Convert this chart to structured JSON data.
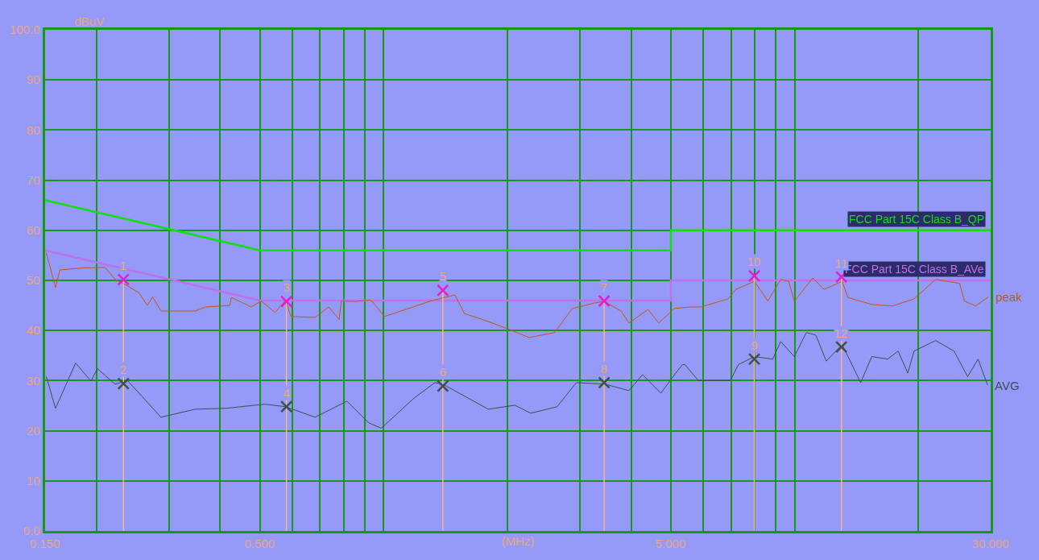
{
  "chart_data": {
    "type": "line",
    "ylabel": "dBuV",
    "xlabel": "(MHz)",
    "log": "x",
    "grid": true,
    "legend": false,
    "xlim": [
      0.15,
      30
    ],
    "ylim": [
      0,
      100
    ],
    "xticks": [
      {
        "value": 0.15,
        "label": "0.150"
      },
      {
        "value": 0.2,
        "label": null
      },
      {
        "value": 0.3,
        "label": null
      },
      {
        "value": 0.4,
        "label": null
      },
      {
        "value": 0.5,
        "label": "0.500"
      },
      {
        "value": 0.6,
        "label": null
      },
      {
        "value": 0.7,
        "label": null
      },
      {
        "value": 0.8,
        "label": null
      },
      {
        "value": 0.9,
        "label": null
      },
      {
        "value": 1,
        "label": null
      },
      {
        "value": 2,
        "label": null
      },
      {
        "value": 3,
        "label": null
      },
      {
        "value": 4,
        "label": null
      },
      {
        "value": 5,
        "label": "5.000"
      },
      {
        "value": 6,
        "label": null
      },
      {
        "value": 7,
        "label": null
      },
      {
        "value": 8,
        "label": null
      },
      {
        "value": 9,
        "label": null
      },
      {
        "value": 10,
        "label": null
      },
      {
        "value": 20,
        "label": null
      },
      {
        "value": 30,
        "label": "30.000"
      }
    ],
    "yticks": [
      {
        "value": 0,
        "label": "0.0"
      },
      10,
      20,
      30,
      40,
      50,
      60,
      70,
      80,
      90,
      {
        "value": 100,
        "label": "100.0"
      }
    ],
    "series": [
      {
        "name": "FCC Part 15C Class B_QP",
        "color": "#10e010",
        "x": [
          0.15,
          0.5,
          5,
          5,
          30
        ],
        "values": [
          66,
          56,
          56,
          60,
          60
        ]
      },
      {
        "name": "FCC Part 15C Class B_AVe",
        "color": "#c070e8",
        "x": [
          0.15,
          0.5,
          5,
          5,
          30
        ],
        "values": [
          56,
          46,
          46,
          50,
          50
        ]
      },
      {
        "name": "peak",
        "color": "#c05a10",
        "x": [
          0.151,
          0.159,
          0.163,
          0.186,
          0.21,
          0.222,
          0.236,
          0.254,
          0.266,
          0.274,
          0.287,
          0.348,
          0.369,
          0.422,
          0.426,
          0.476,
          0.504,
          0.544,
          0.577,
          0.595,
          0.681,
          0.735,
          0.779,
          0.789,
          0.852,
          0.931,
          1.005,
          1.15,
          1.314,
          1.49,
          1.572,
          1.797,
          1.993,
          2.259,
          2.607,
          2.877,
          3.261,
          3.441,
          3.78,
          3.953,
          4.401,
          4.665,
          5.102,
          5.58,
          5.912,
          6.884,
          7.2,
          7.98,
          8.611,
          9.252,
          9.675,
          9.983,
          11.07,
          11.78,
          13.06,
          13.47,
          15.41,
          17.31,
          19.53,
          22.04,
          25.21,
          25.89,
          27.57,
          29.62
        ],
        "values": [
          55.5,
          48.6,
          52.1,
          52.5,
          52.6,
          50.2,
          49.1,
          47.5,
          45.0,
          46.7,
          43.9,
          43.9,
          44.7,
          45.0,
          46.6,
          44.7,
          45.9,
          43.6,
          46.0,
          42.8,
          42.6,
          44.7,
          42.2,
          45.9,
          45.8,
          46.1,
          42.8,
          44.4,
          46.0,
          47.1,
          43.4,
          41.8,
          40.4,
          38.6,
          39.6,
          44.4,
          45.5,
          45.8,
          43.9,
          41.5,
          44.2,
          41.5,
          44.4,
          44.7,
          44.7,
          46.3,
          48.2,
          49.8,
          45.9,
          50.2,
          49.8,
          45.8,
          50.5,
          48.2,
          49.8,
          46.6,
          45.2,
          44.9,
          46.3,
          50.2,
          49.4,
          45.9,
          44.9,
          46.7
        ]
      },
      {
        "name": "AVG",
        "color": "#3c5050",
        "x": [
          0.151,
          0.159,
          0.178,
          0.194,
          0.201,
          0.222,
          0.238,
          0.258,
          0.287,
          0.348,
          0.416,
          0.513,
          0.577,
          0.681,
          0.814,
          0.919,
          0.987,
          1.181,
          1.332,
          1.393,
          1.797,
          2.085,
          2.28,
          2.643,
          2.943,
          3.456,
          3.953,
          4.265,
          4.727,
          5.102,
          5.334,
          5.408,
          5.835,
          6.977,
          7.297,
          7.98,
          8.845,
          9.252,
          9.983,
          10.68,
          11.26,
          11.94,
          13.06,
          14.48,
          15.41,
          16.85,
          17.86,
          18.86,
          19.53,
          22.04,
          24.43,
          26.37,
          27.95,
          29.49
        ],
        "values": [
          30.8,
          24.5,
          33.5,
          29.9,
          32.4,
          29.3,
          30.0,
          26.9,
          22.7,
          24.3,
          24.5,
          25.3,
          24.8,
          22.7,
          25.9,
          21.6,
          20.5,
          26.4,
          29.6,
          29.3,
          24.3,
          25.1,
          23.5,
          24.8,
          29.6,
          29.3,
          28.0,
          31.2,
          27.5,
          31.2,
          33.2,
          33.2,
          30.0,
          30.0,
          33.2,
          34.8,
          34.3,
          37.8,
          34.8,
          39.6,
          39.1,
          33.9,
          37.2,
          29.6,
          34.8,
          34.3,
          35.9,
          31.5,
          35.9,
          38.0,
          35.9,
          30.8,
          34.3,
          29.1
        ]
      },
      {
        "type": "lollipop",
        "marker": "cross",
        "color": "#e020d0",
        "x": [
          0.2327,
          0.58,
          1.393,
          3.44,
          7.98,
          13.0
        ],
        "values": [
          50.2,
          45.8,
          48.0,
          45.9,
          50.9,
          50.7
        ]
      },
      {
        "type": "scatter",
        "marker": "cross",
        "color": "#405050",
        "x": [
          0.2327,
          0.58,
          1.393,
          3.44,
          7.98,
          13.0
        ],
        "values": [
          29.4,
          24.8,
          28.9,
          29.6,
          34.3,
          36.7
        ]
      }
    ],
    "annotations": [
      {
        "text": "1",
        "x": 0.2327,
        "y": 50.2
      },
      {
        "text": "2",
        "x": 0.2327,
        "y": 29.4
      },
      {
        "text": "3",
        "x": 0.58,
        "y": 45.8
      },
      {
        "text": "4",
        "x": 0.58,
        "y": 24.8
      },
      {
        "text": "5",
        "x": 1.393,
        "y": 48.0
      },
      {
        "text": "6",
        "x": 1.393,
        "y": 28.9
      },
      {
        "text": "7",
        "x": 3.44,
        "y": 45.9
      },
      {
        "text": "8",
        "x": 3.44,
        "y": 29.6
      },
      {
        "text": "9",
        "x": 7.98,
        "y": 34.3
      },
      {
        "text": "10",
        "x": 7.98,
        "y": 50.9
      },
      {
        "text": "11",
        "x": 13.0,
        "y": 50.7
      },
      {
        "text": "12",
        "x": 13.0,
        "y": 36.7
      }
    ]
  }
}
